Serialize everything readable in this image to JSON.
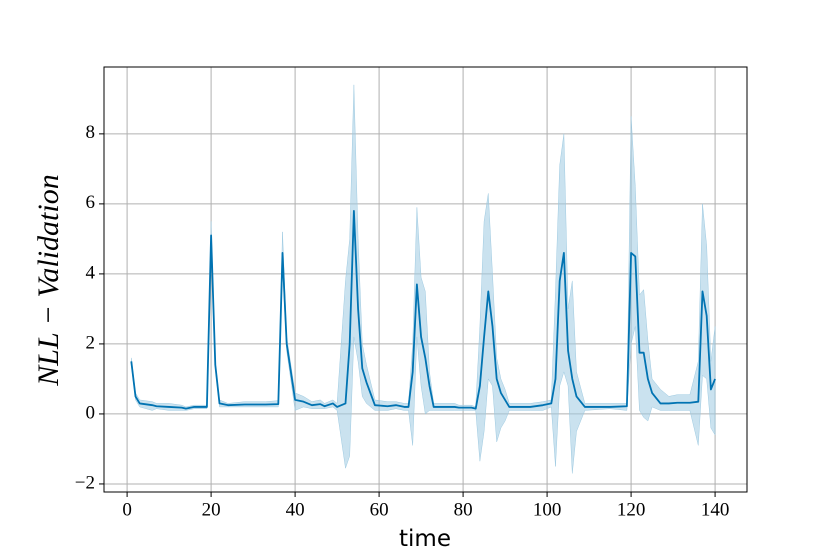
{
  "chart_data": {
    "type": "line",
    "x_label": "time",
    "y_label": "NLL − Validation",
    "x": [
      1,
      2,
      3,
      6,
      7,
      10,
      13,
      14,
      16,
      19,
      20,
      21,
      22,
      24,
      28,
      33,
      36,
      37,
      38,
      40,
      42,
      44,
      46,
      47,
      49,
      50,
      52,
      53,
      54,
      55,
      56,
      57,
      59,
      62,
      64,
      66,
      67,
      68,
      69,
      70,
      71,
      72,
      73,
      78,
      79,
      82,
      83,
      84,
      85,
      86,
      87,
      88,
      89,
      90,
      91,
      96,
      99,
      101,
      102,
      103,
      104,
      105,
      106,
      107,
      109,
      115,
      119,
      120,
      121,
      122,
      123,
      124,
      125,
      127,
      129,
      131,
      134,
      136,
      137,
      138,
      139,
      140
    ],
    "series": [
      {
        "color": "#0173b2",
        "band_color": "#9ecae1",
        "values": [
          1.5,
          0.5,
          0.3,
          0.25,
          0.22,
          0.2,
          0.18,
          0.15,
          0.2,
          0.2,
          5.1,
          1.4,
          0.3,
          0.25,
          0.27,
          0.27,
          0.28,
          4.6,
          2.0,
          0.4,
          0.35,
          0.25,
          0.28,
          0.22,
          0.3,
          0.2,
          0.3,
          2.0,
          5.8,
          3.0,
          1.3,
          0.9,
          0.25,
          0.22,
          0.25,
          0.2,
          0.2,
          1.2,
          3.7,
          2.2,
          1.6,
          0.8,
          0.2,
          0.2,
          0.18,
          0.18,
          0.15,
          0.8,
          2.2,
          3.5,
          2.5,
          1.0,
          0.6,
          0.4,
          0.2,
          0.2,
          0.25,
          0.3,
          1.0,
          3.8,
          4.6,
          1.8,
          1.0,
          0.5,
          0.2,
          0.2,
          0.22,
          4.6,
          4.5,
          1.75,
          1.75,
          1.0,
          0.6,
          0.3,
          0.3,
          0.32,
          0.32,
          0.35,
          3.5,
          2.8,
          0.7,
          1.0
        ],
        "lower": [
          1.4,
          0.4,
          0.2,
          0.1,
          0.15,
          0.1,
          0.1,
          0.1,
          0.15,
          0.15,
          4.9,
          1.3,
          0.2,
          0.2,
          0.2,
          0.2,
          0.2,
          4.2,
          1.8,
          0.1,
          0.2,
          0.15,
          0.15,
          0.15,
          0.2,
          0.1,
          -1.55,
          -1.2,
          2.2,
          1.5,
          0.5,
          0.3,
          0.1,
          0.1,
          0.15,
          0.1,
          0.1,
          -0.9,
          2.2,
          0.8,
          0.0,
          0.1,
          0.1,
          0.1,
          0.1,
          0.1,
          0.1,
          -1.35,
          -0.5,
          1.0,
          0.8,
          -0.8,
          -0.4,
          -0.2,
          0.1,
          0.1,
          0.1,
          0.2,
          -1.5,
          0.8,
          1.2,
          0.8,
          -1.7,
          -0.5,
          0.1,
          0.15,
          0.1,
          2.0,
          2.5,
          0.1,
          -0.1,
          -0.2,
          0.2,
          0.1,
          0.1,
          0.1,
          0.1,
          -0.9,
          1.1,
          1.0,
          -0.4,
          -0.6
        ],
        "upper": [
          1.6,
          0.6,
          0.4,
          0.35,
          0.3,
          0.3,
          0.25,
          0.2,
          0.25,
          0.25,
          5.5,
          1.5,
          0.4,
          0.3,
          0.35,
          0.35,
          0.38,
          5.2,
          2.2,
          0.6,
          0.5,
          0.35,
          0.4,
          0.3,
          0.4,
          0.3,
          3.8,
          5.0,
          9.4,
          5.0,
          2.0,
          1.4,
          0.4,
          0.35,
          0.35,
          0.3,
          0.3,
          2.0,
          5.9,
          3.9,
          3.5,
          1.2,
          0.3,
          0.3,
          0.25,
          0.25,
          0.2,
          2.5,
          5.5,
          6.3,
          4.0,
          1.6,
          1.0,
          0.7,
          0.3,
          0.3,
          0.35,
          0.4,
          3.5,
          7.1,
          8.0,
          3.0,
          3.8,
          1.2,
          0.3,
          0.3,
          0.3,
          8.5,
          6.5,
          3.4,
          3.55,
          2.1,
          1.0,
          0.7,
          0.5,
          0.55,
          0.55,
          1.5,
          6.0,
          4.8,
          1.5,
          2.5
        ]
      }
    ],
    "xlim": [
      -5.5,
      147.6
    ],
    "ylim": [
      -2.23,
      9.91
    ],
    "xticks": [
      0,
      20,
      40,
      60,
      80,
      100,
      120,
      140
    ],
    "yticks": [
      {
        "value": -2,
        "label": "−2"
      },
      0,
      2,
      4,
      6,
      8
    ],
    "grid": true
  }
}
